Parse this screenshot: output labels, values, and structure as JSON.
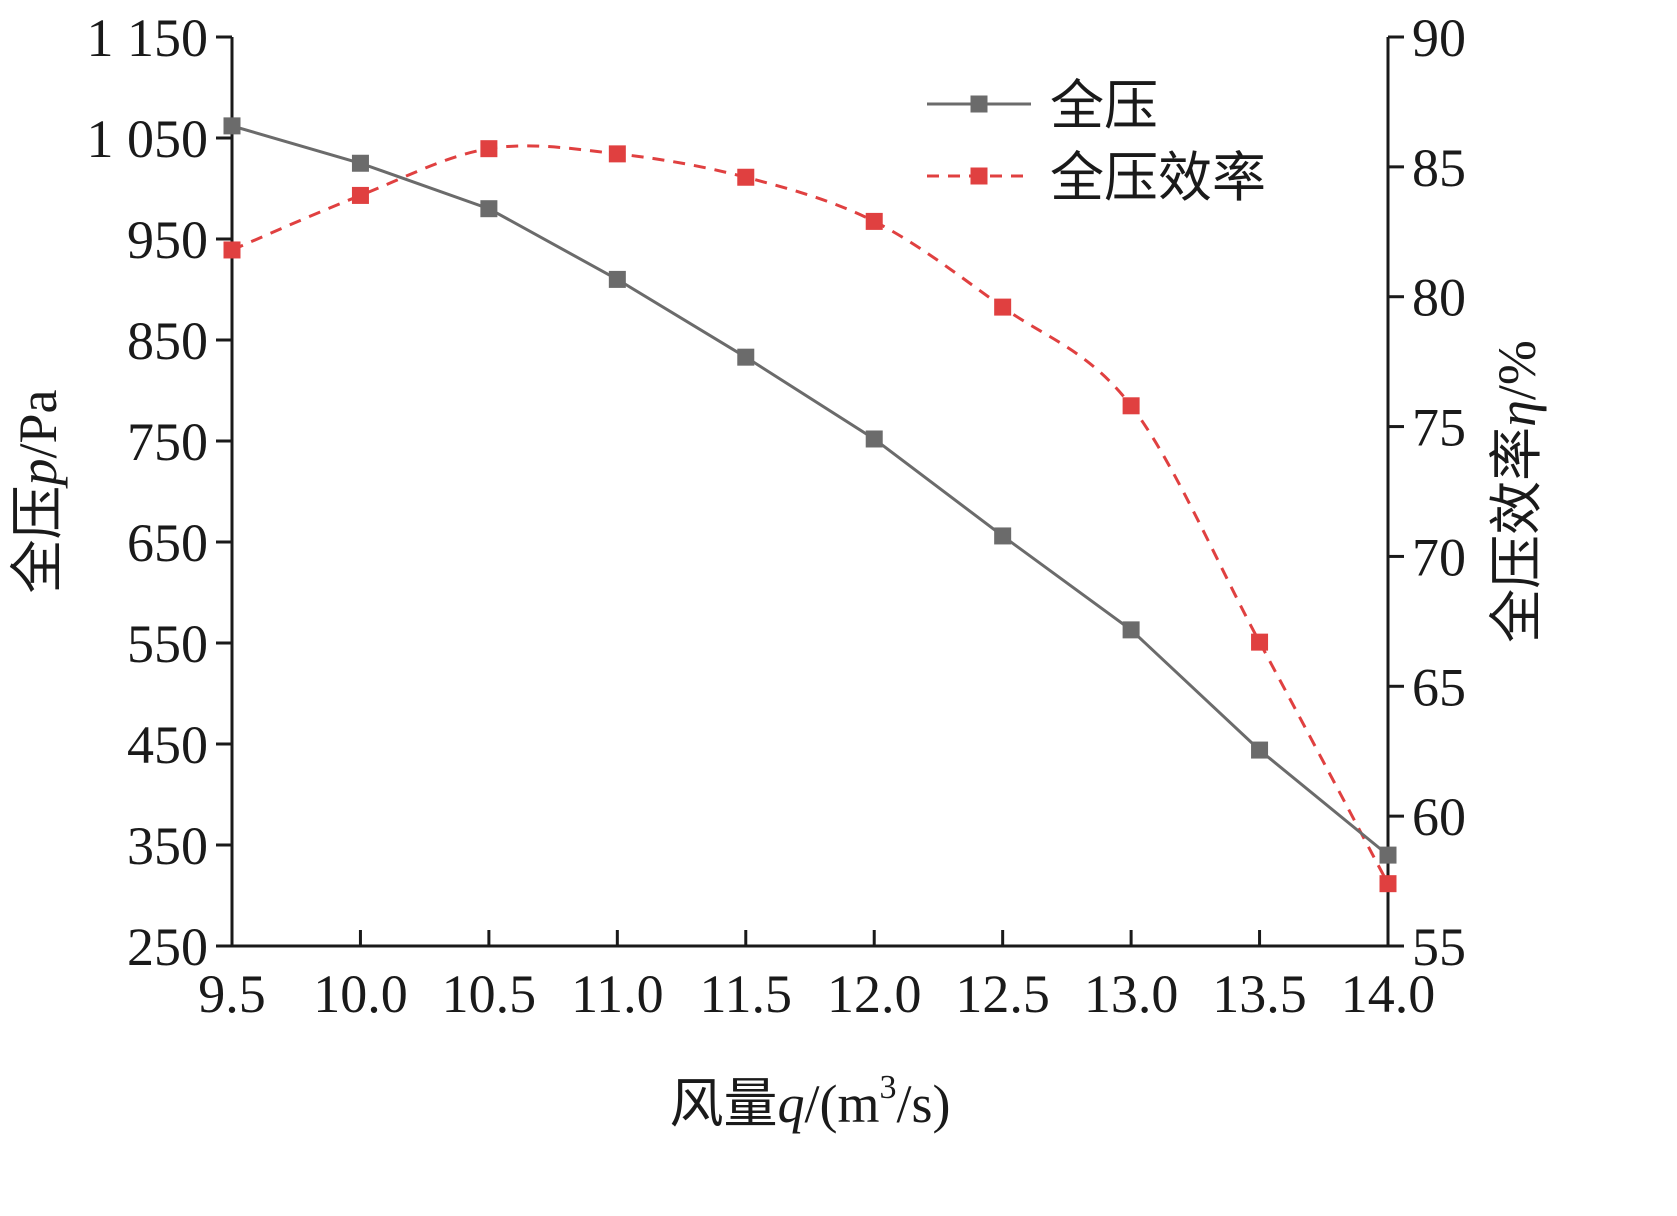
{
  "chart_data": {
    "type": "line",
    "x": [
      9.5,
      10.0,
      10.5,
      11.0,
      11.5,
      12.0,
      12.5,
      13.0,
      13.5,
      14.0
    ],
    "x_tick_labels": [
      "9.5",
      "10.0",
      "10.5",
      "11.0",
      "11.5",
      "12.0",
      "12.5",
      "13.0",
      "13.5",
      "14.0"
    ],
    "xlim": [
      9.5,
      14.0
    ],
    "xlabel": {
      "prefix": "风量",
      "var": "q",
      "unit_open": "/(m",
      "sup": "3",
      "unit_close": "/s)"
    },
    "y_left": {
      "ylim": [
        250,
        1150
      ],
      "ticks": [
        250,
        350,
        450,
        550,
        650,
        750,
        850,
        950,
        1050,
        1150
      ],
      "tick_labels": [
        "250",
        "350",
        "450",
        "550",
        "650",
        "750",
        "850",
        "950",
        "1 050",
        "1 150"
      ],
      "label": {
        "prefix": "全压",
        "var": "p",
        "suffix": "/Pa"
      }
    },
    "y_right": {
      "ylim": [
        55,
        90
      ],
      "ticks": [
        55,
        60,
        65,
        70,
        75,
        80,
        85,
        90
      ],
      "tick_labels": [
        "55",
        "60",
        "65",
        "70",
        "75",
        "80",
        "85",
        "90"
      ],
      "label": {
        "prefix": "全压效率",
        "var": "η",
        "suffix": "/%"
      }
    },
    "series": [
      {
        "name": "全压",
        "axis": "left",
        "color": "#6b6b6b",
        "line_style": "solid",
        "marker": "square",
        "values": [
          1062,
          1025,
          980,
          910,
          833,
          752,
          656,
          563,
          444,
          340
        ]
      },
      {
        "name": "全压效率",
        "axis": "right",
        "color": "#e04040",
        "line_style": "dashed",
        "marker": "square",
        "values": [
          81.8,
          83.9,
          85.7,
          85.5,
          84.6,
          82.9,
          79.6,
          75.8,
          66.7,
          57.4
        ]
      }
    ],
    "legend_position": "top-right",
    "grid": false
  }
}
